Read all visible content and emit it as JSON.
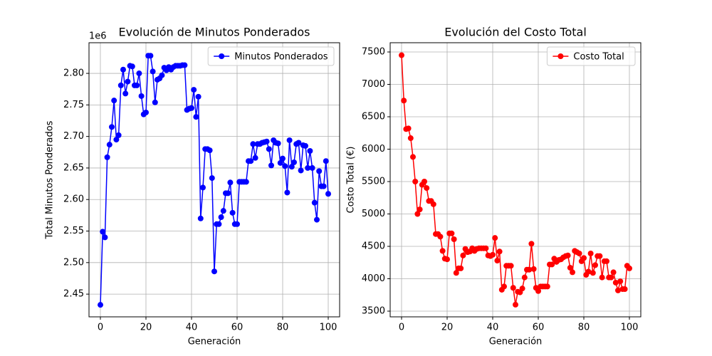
{
  "chart_data": [
    {
      "type": "line",
      "title": "Evolución de Minutos Ponderados",
      "xlabel": "Generación",
      "ylabel": "Total Minutos Ponderados",
      "offset_label": "1e6",
      "x": [
        0,
        1,
        2,
        3,
        4,
        5,
        6,
        7,
        8,
        9,
        10,
        11,
        12,
        13,
        14,
        15,
        16,
        17,
        18,
        19,
        20,
        21,
        22,
        23,
        24,
        25,
        26,
        27,
        28,
        29,
        30,
        31,
        32,
        33,
        34,
        35,
        36,
        37,
        38,
        39,
        40,
        41,
        42,
        43,
        44,
        45,
        46,
        47,
        48,
        49,
        50,
        51,
        52,
        53,
        54,
        55,
        56,
        57,
        58,
        59,
        60,
        61,
        62,
        63,
        64,
        65,
        66,
        67,
        68,
        69,
        70,
        71,
        72,
        73,
        74,
        75,
        76,
        77,
        78,
        79,
        80,
        81,
        82,
        83,
        84,
        85,
        86,
        87,
        88,
        89,
        90,
        91,
        92,
        93,
        94,
        95,
        96,
        97,
        98,
        99,
        100
      ],
      "series": [
        {
          "name": "Minutos Ponderados",
          "color": "#0000ff",
          "values": [
            2.433,
            2.549,
            2.54,
            2.667,
            2.687,
            2.715,
            2.757,
            2.695,
            2.702,
            2.781,
            2.806,
            2.768,
            2.787,
            2.812,
            2.811,
            2.781,
            2.781,
            2.8,
            2.764,
            2.735,
            2.738,
            2.828,
            2.828,
            2.803,
            2.754,
            2.79,
            2.792,
            2.797,
            2.809,
            2.805,
            2.81,
            2.806,
            2.81,
            2.812,
            2.812,
            2.812,
            2.813,
            2.813,
            2.742,
            2.744,
            2.745,
            2.774,
            2.731,
            2.763,
            2.57,
            2.619,
            2.68,
            2.68,
            2.678,
            2.634,
            2.486,
            2.561,
            2.561,
            2.572,
            2.582,
            2.61,
            2.61,
            2.627,
            2.579,
            2.561,
            2.561,
            2.628,
            2.628,
            2.628,
            2.628,
            2.661,
            2.661,
            2.688,
            2.666,
            2.688,
            2.688,
            2.69,
            2.691,
            2.692,
            2.68,
            2.654,
            2.694,
            2.69,
            2.689,
            2.658,
            2.665,
            2.653,
            2.611,
            2.694,
            2.652,
            2.659,
            2.688,
            2.69,
            2.646,
            2.686,
            2.685,
            2.65,
            2.677,
            2.65,
            2.595,
            2.568,
            2.645,
            2.621,
            2.621,
            2.661,
            2.609
          ]
        }
      ],
      "xlim": [
        -5,
        105
      ],
      "xticks": [
        0,
        20,
        40,
        60,
        80,
        100
      ],
      "ylim": [
        2.414,
        2.8486
      ],
      "yticks": [
        2.45,
        {
          "value": 2.5,
          "label": "2.50"
        },
        2.55,
        {
          "value": 2.6,
          "label": "2.60"
        },
        2.65,
        {
          "value": 2.7,
          "label": "2.70"
        },
        2.75,
        {
          "value": 2.8,
          "label": "2.80"
        }
      ],
      "grid": true,
      "legend": "upper right"
    },
    {
      "type": "line",
      "title": "Evolución del Costo Total",
      "xlabel": "Generación",
      "ylabel": "Costo Total (€)",
      "x": [
        0,
        1,
        2,
        3,
        4,
        5,
        6,
        7,
        8,
        9,
        10,
        11,
        12,
        13,
        14,
        15,
        16,
        17,
        18,
        19,
        20,
        21,
        22,
        23,
        24,
        25,
        26,
        27,
        28,
        29,
        30,
        31,
        32,
        33,
        34,
        35,
        36,
        37,
        38,
        39,
        40,
        41,
        42,
        43,
        44,
        45,
        46,
        47,
        48,
        49,
        50,
        51,
        52,
        53,
        54,
        55,
        56,
        57,
        58,
        59,
        60,
        61,
        62,
        63,
        64,
        65,
        66,
        67,
        68,
        69,
        70,
        71,
        72,
        73,
        74,
        75,
        76,
        77,
        78,
        79,
        80,
        81,
        82,
        83,
        84,
        85,
        86,
        87,
        88,
        89,
        90,
        91,
        92,
        93,
        94,
        95,
        96,
        97,
        98,
        99,
        100
      ],
      "series": [
        {
          "name": "Costo Total",
          "color": "#ff0000",
          "values": [
            7450,
            6750,
            6310,
            6320,
            6170,
            5880,
            5500,
            5000,
            5070,
            5450,
            5500,
            5400,
            5200,
            5200,
            5150,
            4690,
            4690,
            4650,
            4430,
            4310,
            4300,
            4700,
            4700,
            4610,
            4090,
            4160,
            4160,
            4360,
            4460,
            4410,
            4420,
            4470,
            4430,
            4460,
            4470,
            4470,
            4470,
            4470,
            4360,
            4350,
            4370,
            4630,
            4280,
            4420,
            3830,
            3880,
            4200,
            4200,
            4200,
            3860,
            3600,
            3800,
            3790,
            3850,
            4020,
            4140,
            4140,
            4540,
            4150,
            3860,
            3810,
            3880,
            3880,
            3880,
            3880,
            4220,
            4220,
            4310,
            4260,
            4290,
            4300,
            4330,
            4350,
            4360,
            4170,
            4100,
            4430,
            4410,
            4390,
            4270,
            4320,
            4060,
            4110,
            4390,
            4090,
            4210,
            4350,
            4350,
            4020,
            4270,
            4270,
            4020,
            4020,
            4100,
            3940,
            3820,
            3960,
            3840,
            3840,
            4200,
            4160
          ]
        }
      ],
      "xlim": [
        -5,
        105
      ],
      "xticks": [
        0,
        20,
        40,
        60,
        80,
        100
      ],
      "ylim": [
        3412,
        7643
      ],
      "yticks": [
        3500,
        4000,
        4500,
        5000,
        5500,
        6000,
        6500,
        7000,
        7500
      ],
      "grid": true,
      "legend": "upper right"
    }
  ]
}
